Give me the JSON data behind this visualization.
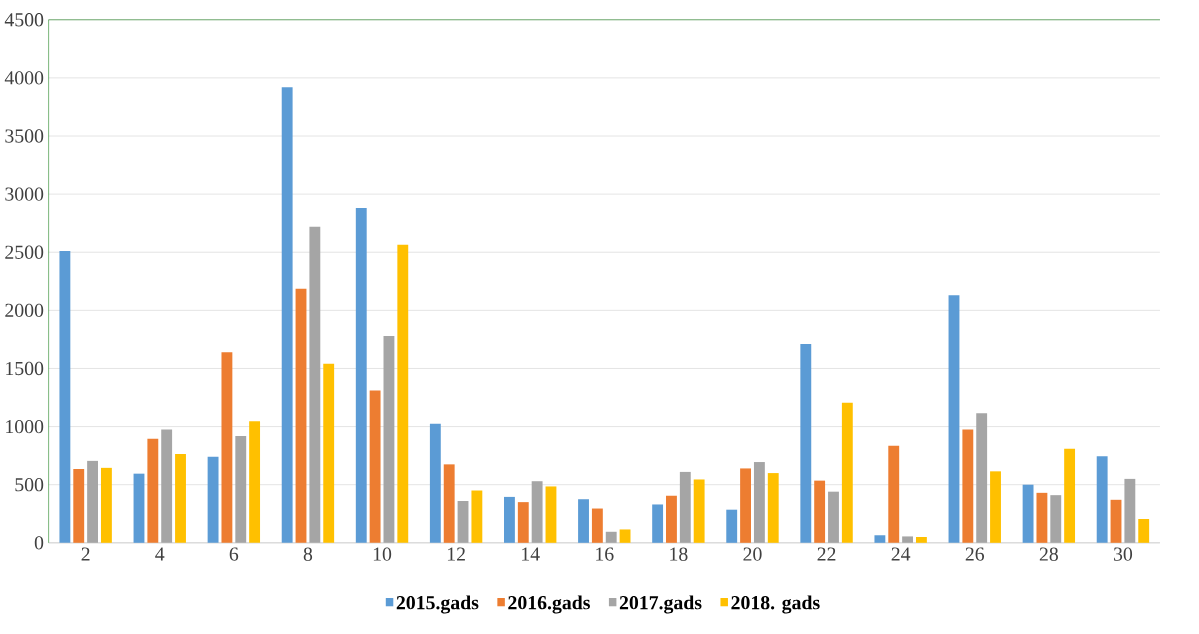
{
  "chart_data": {
    "type": "bar",
    "categories": [
      "2",
      "4",
      "6",
      "8",
      "10",
      "12",
      "14",
      "16",
      "18",
      "20",
      "22",
      "24",
      "26",
      "28",
      "30"
    ],
    "series": [
      {
        "name": "2015.gads",
        "color": "#5b9bd5",
        "values": [
          2510,
          595,
          740,
          3920,
          2880,
          1025,
          395,
          375,
          330,
          285,
          1710,
          65,
          2130,
          500,
          745
        ]
      },
      {
        "name": "2016.gads",
        "color": "#ed7d31",
        "values": [
          635,
          895,
          1640,
          2185,
          1310,
          675,
          350,
          295,
          405,
          640,
          535,
          835,
          975,
          430,
          370
        ]
      },
      {
        "name": "2017.gads",
        "color": "#a5a5a5",
        "values": [
          705,
          975,
          920,
          2720,
          1780,
          360,
          530,
          95,
          610,
          695,
          440,
          55,
          1115,
          410,
          550
        ]
      },
      {
        "name": "2018. gads",
        "color": "#ffc000",
        "values": [
          645,
          765,
          1045,
          1540,
          2565,
          450,
          485,
          115,
          545,
          600,
          1205,
          50,
          615,
          810,
          205
        ]
      }
    ],
    "ylim": [
      0,
      4500
    ],
    "yticks": [
      0,
      500,
      1000,
      1500,
      2000,
      2500,
      3000,
      3500,
      4000,
      4500
    ],
    "grid": "y",
    "legend": "bottom"
  }
}
